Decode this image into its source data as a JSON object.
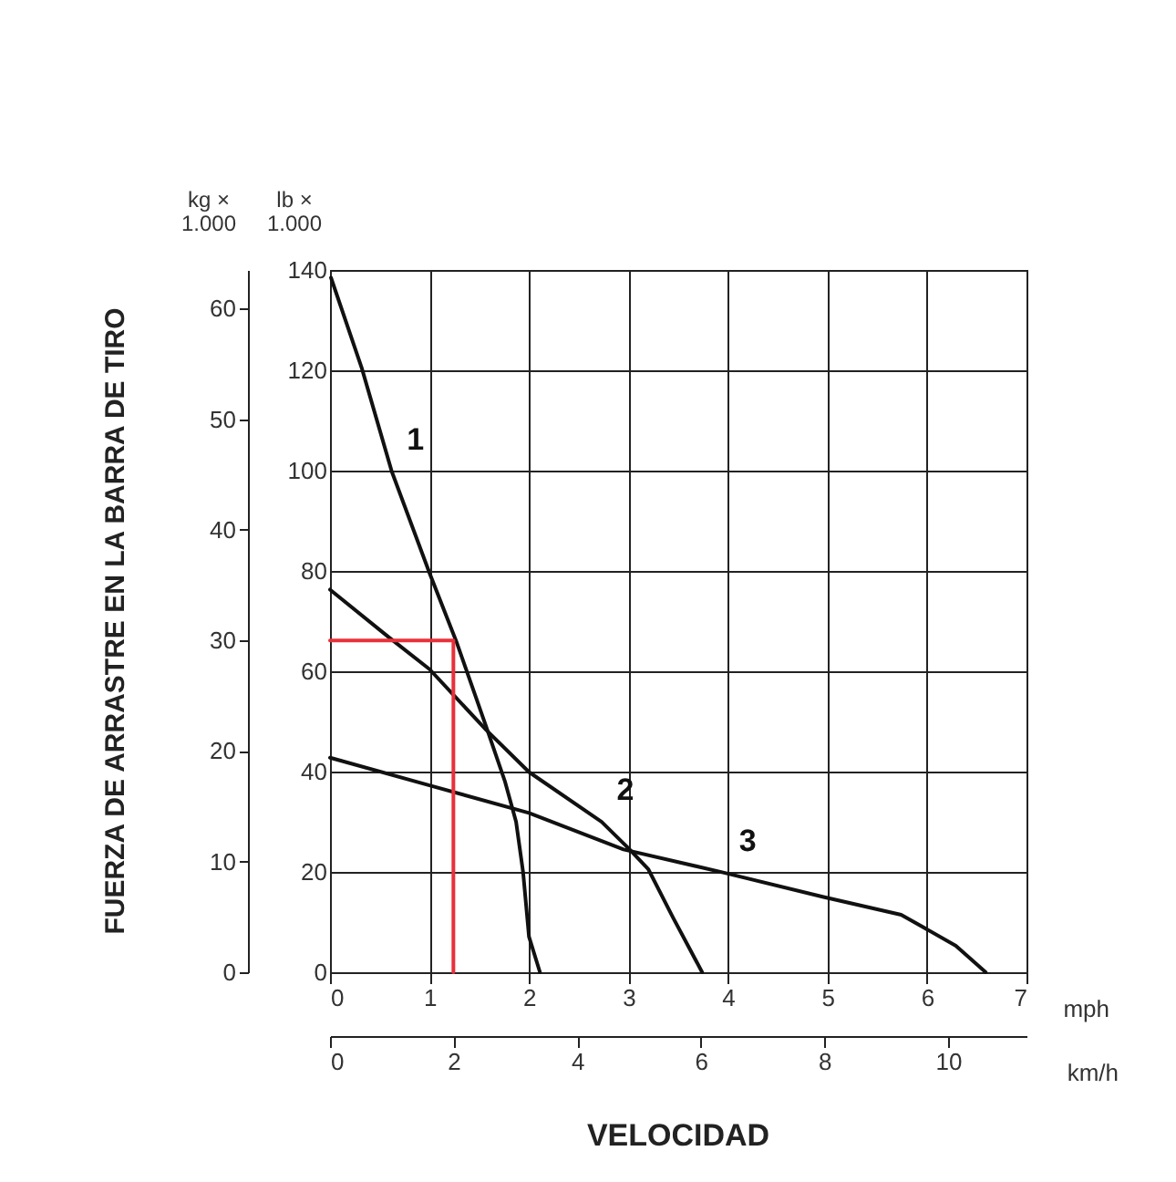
{
  "chart_data": {
    "type": "line",
    "xlabel": "VELOCIDAD",
    "ylabel": "FUERZA DE ARRASTRE EN LA BARRA DE TIRO",
    "annotations": [
      "kg × 1.000",
      "lb × 1.000",
      "mph",
      "km/h",
      {
        "text": "1",
        "x": 0.62,
        "y": 45.3
      },
      {
        "text": "2",
        "x": 2.73,
        "y": 13.6
      },
      {
        "text": "3",
        "x": 3.96,
        "y": 9.0
      }
    ],
    "xlim": [
      0,
      7
    ],
    "xticks": [
      0,
      1,
      2,
      3,
      4,
      5,
      6,
      7
    ],
    "x2lim": [
      0,
      11.27
    ],
    "x2ticks": [
      0,
      2,
      4,
      6,
      8,
      10
    ],
    "ylim": [
      0,
      63.5
    ],
    "yticks": [
      0,
      10,
      20,
      30,
      40,
      50,
      60
    ],
    "y2lim": [
      0,
      140
    ],
    "y2ticks": [
      0,
      20,
      40,
      60,
      80,
      100,
      120,
      140
    ],
    "grid": true,
    "series": [
      {
        "color": "#111111",
        "x": [
          0.01,
          0.32,
          0.62,
          1.0,
          1.27,
          1.57,
          1.76,
          1.87,
          1.94,
          2.0,
          2.11
        ],
        "values": [
          62.8,
          54.6,
          45.3,
          36.1,
          29.9,
          22.2,
          17.2,
          13.6,
          9.1,
          3.2,
          0
        ]
      },
      {
        "color": "#111111",
        "x": [
          0,
          0.59,
          1.0,
          1.57,
          2.0,
          2.73,
          3.0,
          3.2,
          3.45,
          3.74
        ],
        "values": [
          34.6,
          30.3,
          27.4,
          21.9,
          18.1,
          13.6,
          11.2,
          9.3,
          4.9,
          0
        ]
      },
      {
        "color": "#111111",
        "x": [
          0,
          1.0,
          2.0,
          2.95,
          3.96,
          4.96,
          5.74,
          6.29,
          6.59
        ],
        "values": [
          19.4,
          16.9,
          14.4,
          11.1,
          9.0,
          6.8,
          5.2,
          2.4,
          0
        ]
      },
      {
        "color": "#e8303a",
        "x": [
          0,
          1.24,
          1.24
        ],
        "values": [
          30,
          30,
          0
        ]
      }
    ]
  }
}
